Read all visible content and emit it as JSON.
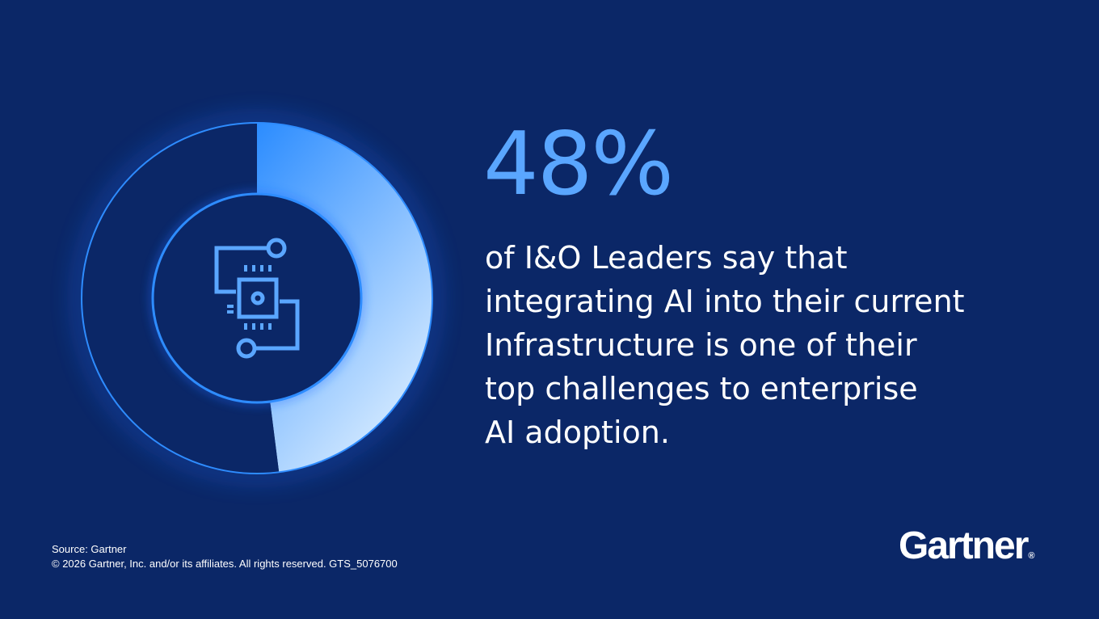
{
  "chart_data": {
    "type": "pie",
    "title": "",
    "slices": [
      {
        "label": "",
        "value": 48
      },
      {
        "label": "",
        "value": 52
      }
    ],
    "colors": {
      "highlight_start": "#2b8cff",
      "highlight_end": "#cfe6ff",
      "remainder": "#0b2767",
      "ring_outline": "#2e8cff"
    }
  },
  "stat": {
    "value": "48%",
    "caption_lines": [
      "of I&O Leaders say that",
      "integrating AI into their current",
      "Infrastructure is one of their",
      "top challenges to enterprise",
      "AI adoption."
    ]
  },
  "footer": {
    "source": "Source: Gartner",
    "copyright": "© 2026 Gartner, Inc. and/or its affiliates. All rights reserved. GTS_5076700"
  },
  "brand": {
    "logo": "Gartner",
    "reg_mark": "®"
  },
  "icons": {
    "center": "ai-chip-circuit-icon"
  },
  "colors": {
    "background": "#0b2767",
    "accent": "#5aa6ff",
    "text": "#ffffff"
  }
}
